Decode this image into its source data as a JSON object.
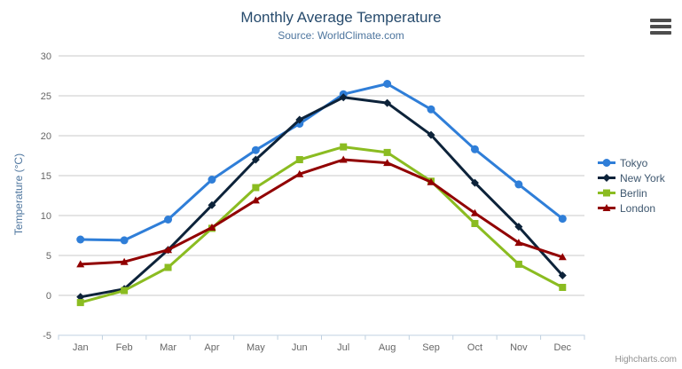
{
  "chart": {
    "title": "Monthly Average Temperature",
    "subtitle": "Source: WorldClimate.com",
    "y_axis_title": "Temperature (°C)",
    "credits": "Highcharts.com",
    "export_icon": "hamburger-icon"
  },
  "chart_data": {
    "type": "line",
    "title": "Monthly Average Temperature",
    "subtitle": "Source: WorldClimate.com",
    "xlabel": "",
    "ylabel": "Temperature (°C)",
    "ylim": [
      -5,
      30
    ],
    "ytick_interval": 5,
    "grid": true,
    "legend_position": "right",
    "categories": [
      "Jan",
      "Feb",
      "Mar",
      "Apr",
      "May",
      "Jun",
      "Jul",
      "Aug",
      "Sep",
      "Oct",
      "Nov",
      "Dec"
    ],
    "series": [
      {
        "name": "Tokyo",
        "color": "#2f7ed8",
        "marker": "circle",
        "values": [
          7.0,
          6.9,
          9.5,
          14.5,
          18.2,
          21.5,
          25.2,
          26.5,
          23.3,
          18.3,
          13.9,
          9.6
        ]
      },
      {
        "name": "New York",
        "color": "#0d233a",
        "marker": "diamond",
        "values": [
          -0.2,
          0.8,
          5.7,
          11.3,
          17.0,
          22.0,
          24.8,
          24.1,
          20.1,
          14.1,
          8.6,
          2.5
        ]
      },
      {
        "name": "Berlin",
        "color": "#8bbc21",
        "marker": "square",
        "values": [
          -0.9,
          0.6,
          3.5,
          8.4,
          13.5,
          17.0,
          18.6,
          17.9,
          14.3,
          9.0,
          3.9,
          1.0
        ]
      },
      {
        "name": "London",
        "color": "#910000",
        "marker": "triangle",
        "values": [
          3.9,
          4.2,
          5.7,
          8.5,
          11.9,
          15.2,
          17.0,
          16.6,
          14.2,
          10.3,
          6.6,
          4.8
        ]
      }
    ]
  },
  "colors": {
    "title": "#274b6d",
    "subtitle": "#4d759e",
    "axis_label": "#666666",
    "grid_line": "#c9c9c9",
    "axis_line": "#c0d0e0",
    "legend_text": "#3e576f",
    "credits": "#909090",
    "export_icon": "#4d4d4d"
  }
}
